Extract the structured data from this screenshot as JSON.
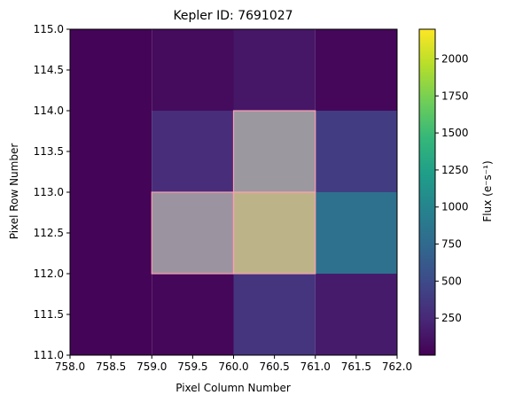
{
  "chart_data": {
    "type": "heatmap",
    "title": "Kepler ID: 7691027",
    "xlabel": "Pixel Column Number",
    "ylabel": "Pixel Row Number",
    "colorbar_label": "Flux (e⁻s⁻¹)",
    "colormap": "viridis",
    "xlim": [
      758.0,
      762.0
    ],
    "ylim": [
      111.0,
      115.0
    ],
    "vlim": [
      0,
      2200
    ],
    "x_ticks": [
      "758.0",
      "758.5",
      "759.0",
      "759.5",
      "760.0",
      "760.5",
      "761.0",
      "761.5",
      "762.0"
    ],
    "y_ticks": [
      "111.0",
      "111.5",
      "112.0",
      "112.5",
      "113.0",
      "113.5",
      "114.0",
      "114.5",
      "115.0"
    ],
    "colorbar_ticks": [
      "250",
      "500",
      "750",
      "1000",
      "1250",
      "1500",
      "1750",
      "2000"
    ],
    "x_edges": [
      758,
      759,
      760,
      761,
      762
    ],
    "y_edges": [
      111,
      112,
      113,
      114,
      115
    ],
    "values": [
      [
        20,
        40,
        330,
        160
      ],
      [
        20,
        1000,
        1700,
        820
      ],
      [
        20,
        280,
        1100,
        400
      ],
      [
        20,
        60,
        130,
        40
      ]
    ],
    "aperture_mask": [
      [
        false,
        false,
        false,
        false
      ],
      [
        false,
        true,
        true,
        false
      ],
      [
        false,
        false,
        true,
        false
      ],
      [
        false,
        false,
        false,
        false
      ]
    ],
    "aperture_color": "#ff9eb0"
  }
}
